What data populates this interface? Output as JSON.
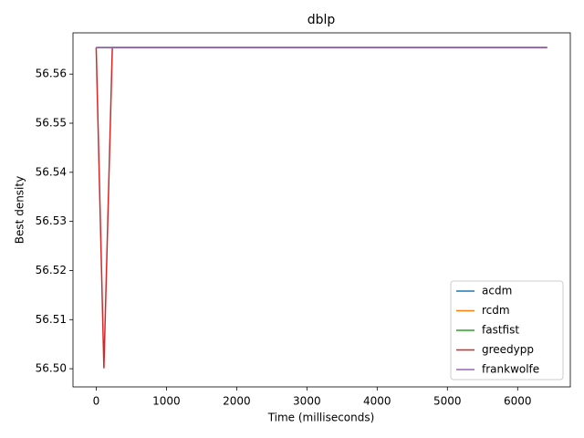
{
  "chart_data": {
    "type": "line",
    "title": "dblp",
    "x_label": "Time (milliseconds)",
    "y_label": "Best density",
    "xlim": [
      -330,
      6750
    ],
    "ylim": [
      56.4963,
      56.5684
    ],
    "xticks": [
      0,
      1000,
      2000,
      3000,
      4000,
      5000,
      6000
    ],
    "yticks": [
      {
        "value": 56.5,
        "label": "56.50"
      },
      56.51,
      56.52,
      56.53,
      56.54,
      56.55,
      56.56
    ],
    "legend": "lower right",
    "series": [
      {
        "name": "acdm",
        "color": "#1f77b4",
        "x": [
          0,
          6420
        ],
        "values": [
          56.5654,
          56.5654
        ]
      },
      {
        "name": "rcdm",
        "color": "#ff7f0e",
        "x": [
          0,
          6420
        ],
        "values": [
          56.5654,
          56.5654
        ]
      },
      {
        "name": "fastfist",
        "color": "#2ca02c",
        "x": [
          0,
          230,
          6420
        ],
        "values": [
          56.5654,
          56.5654,
          56.5654
        ]
      },
      {
        "name": "greedypp",
        "color": "#d62728",
        "x": [
          0,
          110,
          230,
          6420
        ],
        "values": [
          56.5654,
          56.5001,
          56.5654,
          56.5654
        ]
      },
      {
        "name": "frankwolfe",
        "color": "#9467bd",
        "x": [
          0,
          6420
        ],
        "values": [
          56.5654,
          56.5654
        ]
      }
    ]
  }
}
